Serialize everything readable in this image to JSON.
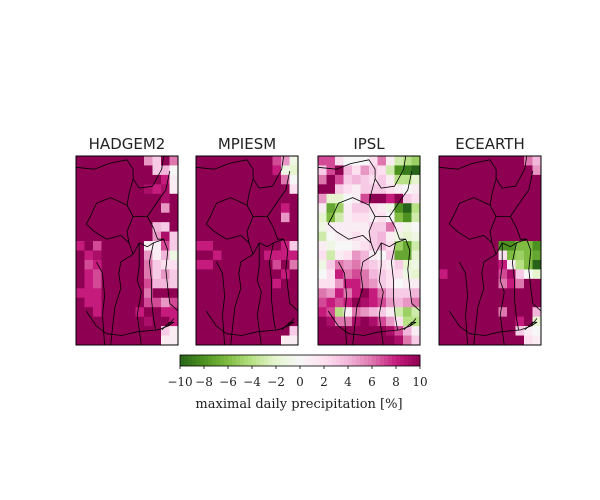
{
  "chart_data": {
    "type": "heatmap",
    "panels": [
      {
        "title": "HADGEM2",
        "grid": [
          [
            10,
            10,
            10,
            10,
            10,
            10,
            10,
            10,
            5,
            3,
            10,
            6
          ],
          [
            10,
            10,
            10,
            10,
            10,
            10,
            10,
            10,
            10,
            3,
            4,
            0
          ],
          [
            10,
            10,
            10,
            10,
            10,
            10,
            10,
            10,
            10,
            10,
            8,
            1
          ],
          [
            10,
            10,
            10,
            10,
            10,
            10,
            10,
            10,
            9,
            8,
            9,
            1
          ],
          [
            10,
            10,
            10,
            10,
            10,
            10,
            10,
            10,
            10,
            10,
            9,
            10
          ],
          [
            10,
            10,
            10,
            10,
            10,
            10,
            10,
            10,
            10,
            10,
            5,
            10
          ],
          [
            10,
            10,
            10,
            10,
            10,
            10,
            10,
            10,
            10,
            10,
            10,
            10
          ],
          [
            10,
            10,
            10,
            10,
            10,
            10,
            10,
            10,
            10,
            4,
            3,
            10
          ],
          [
            10,
            10,
            10,
            10,
            10,
            10,
            10,
            10,
            10,
            5,
            9,
            3
          ],
          [
            8,
            10,
            7,
            10,
            10,
            10,
            10,
            10,
            1,
            1,
            7,
            3
          ],
          [
            10,
            8,
            9,
            10,
            10,
            10,
            10,
            10,
            5,
            1,
            4,
            -1
          ],
          [
            10,
            7,
            8,
            10,
            10,
            10,
            10,
            10,
            6,
            3,
            2,
            2
          ],
          [
            10,
            8,
            7,
            10,
            10,
            10,
            10,
            10,
            6,
            3,
            5,
            3
          ],
          [
            10,
            8,
            7,
            10,
            10,
            10,
            10,
            10,
            7,
            4,
            4,
            3
          ],
          [
            8,
            8,
            8,
            10,
            10,
            10,
            10,
            10,
            6,
            10,
            10,
            10
          ],
          [
            10,
            8,
            8,
            10,
            10,
            10,
            10,
            10,
            7,
            7,
            5,
            7
          ],
          [
            10,
            10,
            8,
            10,
            10,
            10,
            10,
            8,
            10,
            10,
            8,
            8
          ],
          [
            10,
            10,
            10,
            10,
            10,
            10,
            10,
            10,
            9,
            10,
            10,
            8
          ],
          [
            10,
            10,
            10,
            10,
            10,
            10,
            10,
            10,
            10,
            10,
            3,
            1
          ],
          [
            10,
            10,
            10,
            10,
            10,
            10,
            10,
            10,
            10,
            10,
            1,
            1
          ]
        ]
      },
      {
        "title": "MPIESM",
        "grid": [
          [
            10,
            10,
            10,
            10,
            10,
            10,
            10,
            10,
            10,
            7,
            5,
            -1
          ],
          [
            10,
            10,
            10,
            10,
            10,
            10,
            10,
            10,
            10,
            8,
            -1,
            -2
          ],
          [
            10,
            10,
            10,
            10,
            10,
            10,
            10,
            10,
            10,
            10,
            6,
            0
          ],
          [
            10,
            10,
            10,
            10,
            10,
            10,
            10,
            10,
            10,
            10,
            10,
            2
          ],
          [
            10,
            10,
            10,
            10,
            10,
            10,
            10,
            10,
            10,
            10,
            10,
            10
          ],
          [
            10,
            10,
            10,
            10,
            10,
            10,
            10,
            10,
            10,
            10,
            8,
            10
          ],
          [
            10,
            10,
            10,
            10,
            10,
            10,
            10,
            10,
            10,
            10,
            5,
            10
          ],
          [
            10,
            10,
            10,
            10,
            10,
            10,
            10,
            10,
            10,
            10,
            10,
            10
          ],
          [
            10,
            10,
            10,
            10,
            10,
            10,
            10,
            10,
            10,
            10,
            10,
            10
          ],
          [
            8,
            8,
            10,
            10,
            10,
            10,
            10,
            10,
            10,
            10,
            8,
            3
          ],
          [
            10,
            10,
            8,
            10,
            10,
            10,
            10,
            10,
            8,
            8,
            8,
            8
          ],
          [
            8,
            8,
            10,
            10,
            10,
            10,
            10,
            10,
            10,
            7,
            10,
            6
          ],
          [
            10,
            10,
            10,
            10,
            10,
            10,
            10,
            10,
            10,
            10,
            8,
            10
          ],
          [
            10,
            10,
            10,
            10,
            10,
            10,
            10,
            10,
            10,
            8,
            10,
            10
          ],
          [
            10,
            10,
            10,
            10,
            10,
            10,
            10,
            10,
            10,
            10,
            10,
            10
          ],
          [
            10,
            10,
            10,
            10,
            10,
            10,
            10,
            10,
            10,
            10,
            10,
            10
          ],
          [
            10,
            10,
            10,
            10,
            10,
            10,
            10,
            10,
            10,
            10,
            10,
            10
          ],
          [
            10,
            10,
            10,
            10,
            10,
            10,
            10,
            10,
            10,
            10,
            10,
            10
          ],
          [
            10,
            10,
            10,
            10,
            10,
            10,
            10,
            10,
            10,
            10,
            10,
            3
          ],
          [
            10,
            10,
            10,
            10,
            10,
            10,
            10,
            10,
            10,
            10,
            1,
            1
          ]
        ]
      },
      {
        "title": "IPSL",
        "grid": [
          [
            7,
            7,
            2,
            0,
            0,
            0,
            2,
            6,
            1,
            -3,
            -4,
            -5
          ],
          [
            3,
            7,
            10,
            4,
            2,
            5,
            3,
            2,
            -3,
            -8,
            -9,
            -10
          ],
          [
            6,
            10,
            7,
            3,
            4,
            3,
            2,
            3,
            1,
            -4,
            -4,
            -2
          ],
          [
            10,
            10,
            3,
            2,
            1,
            3,
            3,
            3,
            2,
            1,
            0,
            1
          ],
          [
            5,
            -2,
            -2,
            0,
            1,
            7,
            10,
            10,
            8,
            10,
            3,
            2
          ],
          [
            1,
            -7,
            -5,
            1,
            3,
            3,
            2,
            1,
            -1,
            -8,
            -10,
            -4
          ],
          [
            -2,
            -6,
            -3,
            1,
            2,
            2,
            1,
            2,
            0,
            -6,
            -8,
            -3
          ],
          [
            -1,
            1,
            1,
            1,
            1,
            1,
            3,
            3,
            6,
            1,
            -1,
            0
          ],
          [
            -3,
            0,
            1,
            1,
            2,
            1,
            3,
            4,
            1,
            -1,
            -2,
            -1
          ],
          [
            1,
            -1,
            0,
            0,
            1,
            2,
            3,
            4,
            2,
            -5,
            -7,
            -3
          ],
          [
            2,
            -3,
            1,
            2,
            5,
            4,
            1,
            0,
            3,
            -7,
            -7,
            -2
          ],
          [
            -1,
            3,
            6,
            5,
            6,
            4,
            3,
            2,
            1,
            3,
            -2,
            -1
          ],
          [
            0,
            2,
            8,
            6,
            7,
            6,
            4,
            3,
            2,
            2,
            -1,
            -2
          ],
          [
            2,
            2,
            5,
            8,
            8,
            6,
            5,
            3,
            2,
            0,
            1,
            1
          ],
          [
            6,
            5,
            8,
            6,
            8,
            10,
            8,
            6,
            4,
            3,
            3,
            4
          ],
          [
            7,
            8,
            7,
            8,
            10,
            9,
            8,
            7,
            5,
            4,
            5,
            6
          ],
          [
            8,
            7,
            -4,
            1,
            6,
            5,
            4,
            3,
            1,
            -3,
            -5,
            -3
          ],
          [
            10,
            9,
            6,
            6,
            9,
            10,
            9,
            7,
            5,
            2,
            -4,
            -4
          ],
          [
            10,
            10,
            10,
            10,
            10,
            10,
            10,
            10,
            9,
            7,
            4,
            1
          ],
          [
            10,
            10,
            10,
            10,
            10,
            10,
            10,
            10,
            10,
            9,
            6,
            3
          ]
        ]
      },
      {
        "title": "ECEARTH",
        "grid": [
          [
            10,
            10,
            10,
            10,
            10,
            10,
            10,
            10,
            10,
            10,
            6,
            4
          ],
          [
            10,
            10,
            10,
            10,
            10,
            10,
            10,
            10,
            10,
            10,
            10,
            5
          ],
          [
            10,
            10,
            10,
            10,
            10,
            10,
            10,
            10,
            10,
            10,
            10,
            10
          ],
          [
            10,
            10,
            10,
            10,
            10,
            10,
            10,
            10,
            10,
            10,
            10,
            10
          ],
          [
            10,
            10,
            10,
            10,
            10,
            10,
            10,
            10,
            10,
            10,
            10,
            10
          ],
          [
            10,
            10,
            10,
            10,
            10,
            10,
            10,
            10,
            10,
            10,
            10,
            10
          ],
          [
            10,
            10,
            10,
            10,
            10,
            10,
            10,
            10,
            10,
            10,
            10,
            10
          ],
          [
            10,
            10,
            10,
            10,
            10,
            10,
            10,
            10,
            10,
            10,
            10,
            10
          ],
          [
            10,
            10,
            10,
            10,
            10,
            10,
            10,
            10,
            10,
            10,
            10,
            10
          ],
          [
            10,
            10,
            10,
            10,
            10,
            10,
            10,
            -8,
            -8,
            -6,
            -6,
            -8
          ],
          [
            10,
            10,
            10,
            10,
            10,
            10,
            10,
            2,
            -6,
            -5,
            -6,
            -7
          ],
          [
            10,
            10,
            10,
            10,
            10,
            10,
            10,
            8,
            1,
            -4,
            -6,
            -10
          ],
          [
            8,
            10,
            10,
            10,
            10,
            10,
            10,
            7,
            9,
            3,
            0,
            -2
          ],
          [
            10,
            10,
            10,
            10,
            10,
            10,
            10,
            6,
            8,
            6,
            10,
            10
          ],
          [
            10,
            10,
            10,
            10,
            10,
            10,
            10,
            10,
            10,
            10,
            10,
            10
          ],
          [
            10,
            10,
            10,
            10,
            10,
            10,
            10,
            10,
            10,
            10,
            10,
            10
          ],
          [
            10,
            10,
            10,
            10,
            10,
            10,
            10,
            6,
            10,
            10,
            10,
            4
          ],
          [
            10,
            10,
            10,
            10,
            10,
            10,
            10,
            10,
            10,
            8,
            10,
            -2
          ],
          [
            10,
            10,
            10,
            10,
            10,
            10,
            10,
            10,
            10,
            3,
            1,
            0
          ],
          [
            10,
            10,
            10,
            10,
            10,
            10,
            10,
            10,
            10,
            10,
            2,
            1
          ]
        ]
      }
    ],
    "colorbar": {
      "vmin": -10,
      "vmax": 10,
      "ticks": [
        "−10",
        "−8",
        "−6",
        "−4",
        "−2",
        "0",
        "2",
        "4",
        "6",
        "8",
        "10"
      ],
      "label": "maximal daily precipitation [%]",
      "colormap": "PiYG_r",
      "colors": [
        "#276419",
        "#4d9221",
        "#7fbc41",
        "#b8e186",
        "#e6f5d0",
        "#f7f7f7",
        "#fde0ef",
        "#f1b6da",
        "#de77ae",
        "#c51b7d",
        "#8e0152"
      ]
    },
    "border_color": "#000000"
  }
}
